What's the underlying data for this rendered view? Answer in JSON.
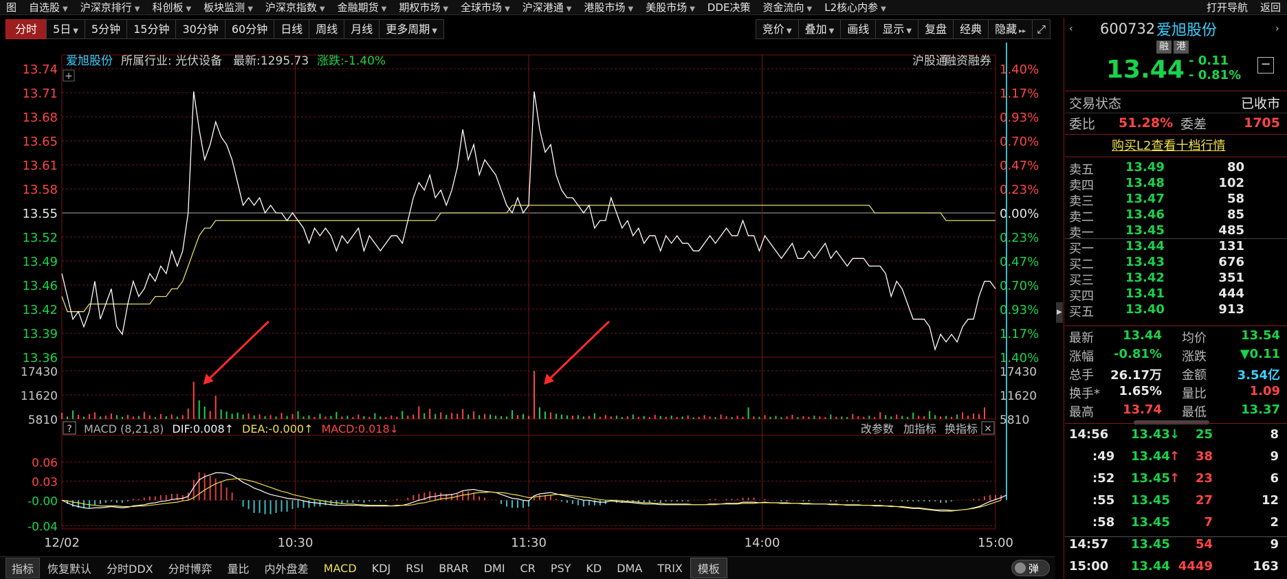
{
  "nav": {
    "items": [
      "图",
      "自选股",
      "沪深京排行",
      "科创板",
      "板块监测",
      "沪深京指数",
      "金融期货",
      "期权市场",
      "全球市场",
      "沪深港通",
      "港股市场",
      "美股市场",
      "DDE决策",
      "资金流向",
      "L2核心内参"
    ],
    "right": [
      "打开导航",
      "返回"
    ]
  },
  "toolbar": {
    "periods": [
      "分时",
      "5日",
      "5分钟",
      "15分钟",
      "30分钟",
      "60分钟",
      "日线",
      "周线",
      "月线",
      "更多周期"
    ],
    "right": [
      "竞价",
      "叠加",
      "画线",
      "显示",
      "复盘",
      "经典",
      "隐藏"
    ]
  },
  "info": {
    "name": "爱旭股份",
    "industry": "所属行业: 光伏设备",
    "latest": "最新:1295.73",
    "change": "涨跌:-1.40%",
    "tags": [
      "沪股通",
      "融资融券"
    ]
  },
  "macd_info": {
    "help": "?",
    "name": "MACD (8,21,8)",
    "dif": "DIF:0.008↑",
    "dea": "DEA:-0.000↑",
    "macd": "MACD:0.018↓",
    "actions": [
      "改参数",
      "加指标",
      "换指标"
    ]
  },
  "chart_data": {
    "type": "line",
    "x_labels": [
      "12/02",
      "10:30",
      "11:30",
      "14:00",
      "15:00"
    ],
    "price_ticks": [
      "13.74",
      "13.71",
      "13.68",
      "13.65",
      "13.61",
      "13.58",
      "13.55",
      "13.52",
      "13.49",
      "13.46",
      "13.42",
      "13.39",
      "13.36"
    ],
    "pct_ticks": [
      "1.40%",
      "1.17%",
      "0.93%",
      "0.70%",
      "0.47%",
      "0.23%",
      "0.00%",
      "0.23%",
      "0.47%",
      "0.70%",
      "0.93%",
      "1.17%",
      "1.40%"
    ],
    "price_range": [
      13.36,
      13.74
    ],
    "prev_close": 13.55,
    "series": [
      {
        "name": "price",
        "color": "#ffffff",
        "values": [
          13.47,
          13.44,
          13.41,
          13.42,
          13.4,
          13.42,
          13.46,
          13.41,
          13.43,
          13.45,
          13.4,
          13.39,
          13.43,
          13.46,
          13.44,
          13.45,
          13.47,
          13.46,
          13.48,
          13.47,
          13.5,
          13.48,
          13.5,
          13.55,
          13.71,
          13.66,
          13.62,
          13.64,
          13.67,
          13.65,
          13.64,
          13.62,
          13.59,
          13.56,
          13.57,
          13.56,
          13.57,
          13.55,
          13.56,
          13.55,
          13.55,
          13.54,
          13.55,
          13.54,
          13.53,
          13.51,
          13.53,
          13.52,
          13.53,
          13.52,
          13.5,
          13.52,
          13.51,
          13.52,
          13.53,
          13.5,
          13.52,
          13.51,
          13.5,
          13.51,
          13.52,
          13.52,
          13.51,
          13.54,
          13.57,
          13.59,
          13.58,
          13.6,
          13.57,
          13.58,
          13.56,
          13.58,
          13.61,
          13.66,
          13.62,
          13.64,
          13.6,
          13.62,
          13.61,
          13.6,
          13.58,
          13.56,
          13.55,
          13.57,
          13.55,
          13.56,
          13.71,
          13.66,
          13.63,
          13.64,
          13.6,
          13.58,
          13.57,
          13.57,
          13.56,
          13.55,
          13.56,
          13.53,
          13.54,
          13.54,
          13.57,
          13.55,
          13.53,
          13.54,
          13.52,
          13.53,
          13.51,
          13.52,
          13.52,
          13.5,
          13.52,
          13.51,
          13.52,
          13.51,
          13.51,
          13.5,
          13.5,
          13.51,
          13.52,
          13.51,
          13.52,
          13.53,
          13.52,
          13.52,
          13.54,
          13.52,
          13.52,
          13.5,
          13.52,
          13.51,
          13.5,
          13.49,
          13.5,
          13.51,
          13.49,
          13.49,
          13.5,
          13.49,
          13.5,
          13.51,
          13.49,
          13.5,
          13.49,
          13.48,
          13.49,
          13.49,
          13.49,
          13.48,
          13.48,
          13.48,
          13.47,
          13.44,
          13.46,
          13.45,
          13.43,
          13.41,
          13.41,
          13.41,
          13.4,
          13.37,
          13.39,
          13.38,
          13.39,
          13.38,
          13.4,
          13.41,
          13.41,
          13.44,
          13.46,
          13.46,
          13.45
        ]
      },
      {
        "name": "avg",
        "color": "#e8e070",
        "values": [
          13.44,
          13.42,
          13.42,
          13.42,
          13.42,
          13.43,
          13.43,
          13.43,
          13.43,
          13.43,
          13.43,
          13.43,
          13.43,
          13.43,
          13.43,
          13.43,
          13.43,
          13.44,
          13.44,
          13.44,
          13.45,
          13.45,
          13.46,
          13.48,
          13.5,
          13.52,
          13.53,
          13.53,
          13.54,
          13.54,
          13.54,
          13.54,
          13.54,
          13.54,
          13.54,
          13.54,
          13.54,
          13.54,
          13.54,
          13.54,
          13.54,
          13.54,
          13.54,
          13.54,
          13.54,
          13.54,
          13.54,
          13.54,
          13.54,
          13.54,
          13.54,
          13.54,
          13.54,
          13.54,
          13.54,
          13.54,
          13.54,
          13.54,
          13.54,
          13.54,
          13.54,
          13.54,
          13.54,
          13.54,
          13.54,
          13.54,
          13.54,
          13.54,
          13.54,
          13.55,
          13.55,
          13.55,
          13.55,
          13.55,
          13.55,
          13.55,
          13.55,
          13.55,
          13.55,
          13.55,
          13.55,
          13.55,
          13.56,
          13.56,
          13.56,
          13.56,
          13.56,
          13.56,
          13.56,
          13.56,
          13.56,
          13.56,
          13.56,
          13.56,
          13.56,
          13.56,
          13.56,
          13.56,
          13.56,
          13.56,
          13.56,
          13.56,
          13.56,
          13.56,
          13.56,
          13.56,
          13.56,
          13.56,
          13.56,
          13.56,
          13.56,
          13.56,
          13.56,
          13.56,
          13.56,
          13.56,
          13.56,
          13.56,
          13.56,
          13.56,
          13.56,
          13.56,
          13.56,
          13.56,
          13.56,
          13.56,
          13.56,
          13.56,
          13.56,
          13.56,
          13.56,
          13.56,
          13.56,
          13.56,
          13.56,
          13.56,
          13.56,
          13.56,
          13.56,
          13.56,
          13.56,
          13.56,
          13.56,
          13.56,
          13.56,
          13.56,
          13.56,
          13.56,
          13.55,
          13.55,
          13.55,
          13.55,
          13.55,
          13.55,
          13.55,
          13.55,
          13.55,
          13.55,
          13.55,
          13.55,
          13.55,
          13.54,
          13.54,
          13.54,
          13.54,
          13.54,
          13.54,
          13.54,
          13.54,
          13.54,
          13.54
        ]
      }
    ],
    "volume": {
      "ticks": [
        "17430",
        "11620",
        "5810"
      ],
      "max": 17430,
      "values": [
        2200,
        900,
        3100,
        1500,
        800,
        1800,
        2400,
        900,
        1200,
        2000,
        1400,
        800,
        1500,
        900,
        1100,
        2600,
        1300,
        700,
        1800,
        1000,
        1600,
        900,
        1400,
        3800,
        13500,
        6800,
        4500,
        2900,
        8400,
        3400,
        2700,
        1900,
        2300,
        1600,
        2000,
        1300,
        1700,
        1000,
        1400,
        900,
        2200,
        1100,
        1800,
        2800,
        900,
        1300,
        800,
        1900,
        900,
        1100,
        2500,
        900,
        1200,
        700,
        1600,
        1000,
        800,
        2100,
        900,
        700,
        1300,
        800,
        2900,
        1200,
        1600,
        4600,
        2100,
        3700,
        1800,
        2400,
        1500,
        2200,
        1900,
        3600,
        1600,
        2800,
        1400,
        1800,
        1600,
        1200,
        1000,
        900,
        3200,
        1400,
        1800,
        1100,
        17430,
        4200,
        2700,
        2400,
        1900,
        1600,
        1300,
        1200,
        1400,
        900,
        1100,
        2100,
        800,
        1400,
        900,
        1200,
        700,
        1000,
        1600,
        800,
        1100,
        700,
        1500,
        1100,
        800,
        1200,
        700,
        900,
        1300,
        600,
        800,
        1400,
        900,
        700,
        1600,
        1000,
        700,
        1200,
        800,
        4200,
        900,
        800,
        1400,
        800,
        1100,
        700,
        900,
        1500,
        700,
        1000,
        800,
        1200,
        900,
        700,
        1600,
        800,
        900,
        700,
        1800,
        1000,
        800,
        1200,
        700,
        2500,
        1400,
        900,
        1600,
        1100,
        800,
        2300,
        1200,
        1000,
        2900,
        1400,
        900,
        1100,
        800,
        1600,
        2400,
        1200,
        2000,
        1800,
        4200
      ]
    },
    "macd": {
      "ticks": [
        "0.06",
        "0.03",
        "-0.00",
        "-0.04"
      ],
      "range": [
        -0.045,
        0.065
      ],
      "dif": [
        0.0,
        -0.004,
        -0.008,
        -0.01,
        -0.012,
        -0.013,
        -0.012,
        -0.012,
        -0.011,
        -0.01,
        -0.011,
        -0.012,
        -0.011,
        -0.009,
        -0.008,
        -0.007,
        -0.005,
        -0.004,
        -0.002,
        -0.001,
        0.001,
        0.002,
        0.003,
        0.006,
        0.02,
        0.032,
        0.037,
        0.04,
        0.043,
        0.043,
        0.042,
        0.039,
        0.034,
        0.028,
        0.024,
        0.019,
        0.016,
        0.012,
        0.009,
        0.007,
        0.005,
        0.003,
        0.002,
        0.001,
        -0.001,
        -0.003,
        -0.004,
        -0.005,
        -0.006,
        -0.007,
        -0.008,
        -0.008,
        -0.008,
        -0.008,
        -0.008,
        -0.009,
        -0.009,
        -0.009,
        -0.009,
        -0.009,
        -0.009,
        -0.008,
        -0.008,
        -0.006,
        -0.003,
        0.0,
        0.002,
        0.005,
        0.006,
        0.008,
        0.008,
        0.009,
        0.011,
        0.015,
        0.016,
        0.017,
        0.015,
        0.014,
        0.013,
        0.012,
        0.009,
        0.006,
        0.003,
        0.002,
        -0.0,
        -0.001,
        0.007,
        0.01,
        0.011,
        0.012,
        0.01,
        0.008,
        0.006,
        0.004,
        0.002,
        0.0,
        -0.0,
        -0.002,
        -0.003,
        -0.003,
        -0.001,
        -0.002,
        -0.003,
        -0.003,
        -0.004,
        -0.005,
        -0.006,
        -0.006,
        -0.006,
        -0.007,
        -0.007,
        -0.007,
        -0.007,
        -0.007,
        -0.007,
        -0.007,
        -0.007,
        -0.007,
        -0.006,
        -0.006,
        -0.006,
        -0.005,
        -0.005,
        -0.005,
        -0.003,
        -0.003,
        -0.003,
        -0.004,
        -0.003,
        -0.004,
        -0.004,
        -0.005,
        -0.005,
        -0.005,
        -0.005,
        -0.006,
        -0.006,
        -0.006,
        -0.006,
        -0.006,
        -0.007,
        -0.007,
        -0.007,
        -0.008,
        -0.008,
        -0.008,
        -0.008,
        -0.008,
        -0.009,
        -0.009,
        -0.009,
        -0.01,
        -0.01,
        -0.011,
        -0.012,
        -0.013,
        -0.013,
        -0.014,
        -0.015,
        -0.016,
        -0.017,
        -0.017,
        -0.017,
        -0.016,
        -0.015,
        -0.014,
        -0.012,
        -0.01,
        -0.006,
        -0.002,
        0.001,
        0.004,
        0.008
      ],
      "dea": [
        0.0,
        -0.001,
        -0.003,
        -0.004,
        -0.006,
        -0.007,
        -0.008,
        -0.009,
        -0.009,
        -0.009,
        -0.009,
        -0.01,
        -0.01,
        -0.01,
        -0.009,
        -0.009,
        -0.008,
        -0.007,
        -0.006,
        -0.005,
        -0.004,
        -0.003,
        -0.001,
        0.0,
        0.004,
        0.01,
        0.016,
        0.021,
        0.026,
        0.029,
        0.032,
        0.033,
        0.034,
        0.033,
        0.031,
        0.029,
        0.026,
        0.023,
        0.02,
        0.017,
        0.014,
        0.012,
        0.009,
        0.007,
        0.005,
        0.003,
        0.001,
        -0.0,
        -0.002,
        -0.003,
        -0.004,
        -0.005,
        -0.006,
        -0.006,
        -0.007,
        -0.007,
        -0.008,
        -0.008,
        -0.008,
        -0.008,
        -0.009,
        -0.009,
        -0.008,
        -0.008,
        -0.007,
        -0.005,
        -0.004,
        -0.002,
        -0.0,
        0.002,
        0.003,
        0.004,
        0.006,
        0.008,
        0.009,
        0.011,
        0.012,
        0.012,
        0.013,
        0.012,
        0.012,
        0.011,
        0.009,
        0.008,
        0.006,
        0.004,
        0.005,
        0.006,
        0.007,
        0.008,
        0.009,
        0.009,
        0.008,
        0.007,
        0.006,
        0.005,
        0.004,
        0.002,
        0.001,
        0.0,
        0.0,
        -0.0,
        -0.001,
        -0.002,
        -0.002,
        -0.003,
        -0.004,
        -0.004,
        -0.005,
        -0.005,
        -0.006,
        -0.006,
        -0.006,
        -0.006,
        -0.006,
        -0.007,
        -0.007,
        -0.007,
        -0.007,
        -0.007,
        -0.006,
        -0.006,
        -0.006,
        -0.006,
        -0.005,
        -0.005,
        -0.005,
        -0.004,
        -0.004,
        -0.004,
        -0.004,
        -0.004,
        -0.004,
        -0.005,
        -0.005,
        -0.005,
        -0.005,
        -0.006,
        -0.006,
        -0.006,
        -0.006,
        -0.006,
        -0.007,
        -0.007,
        -0.007,
        -0.007,
        -0.008,
        -0.008,
        -0.008,
        -0.008,
        -0.009,
        -0.009,
        -0.01,
        -0.01,
        -0.011,
        -0.012,
        -0.012,
        -0.013,
        -0.014,
        -0.015,
        -0.015,
        -0.015,
        -0.016,
        -0.016,
        -0.015,
        -0.014,
        -0.013,
        -0.011,
        -0.009,
        -0.006,
        -0.003,
        -0.0
      ]
    }
  },
  "annotations": [
    {
      "target_index": 24
    },
    {
      "target_index": 86
    }
  ],
  "quote": {
    "code": "600732",
    "name": "爱旭股份",
    "badges": [
      "融",
      "港"
    ],
    "price": "13.44",
    "change": "- 0.11",
    "change_pct": "- 0.81%",
    "minus_btn": "−",
    "status_label": "交易状态",
    "status_value": "已收市",
    "wei_bi_label": "委比",
    "wei_bi_value": "51.28%",
    "wei_cha_label": "委差",
    "wei_cha_value": "1705",
    "l2_link": "购买L2查看十档行情"
  },
  "orderbook": {
    "asks": [
      {
        "label": "卖五",
        "price": "13.49",
        "vol": "80"
      },
      {
        "label": "卖四",
        "price": "13.48",
        "vol": "102"
      },
      {
        "label": "卖三",
        "price": "13.47",
        "vol": "58"
      },
      {
        "label": "卖二",
        "price": "13.46",
        "vol": "85"
      },
      {
        "label": "卖一",
        "price": "13.45",
        "vol": "485"
      }
    ],
    "bids": [
      {
        "label": "买一",
        "price": "13.44",
        "vol": "131"
      },
      {
        "label": "买二",
        "price": "13.43",
        "vol": "676"
      },
      {
        "label": "买三",
        "price": "13.42",
        "vol": "351"
      },
      {
        "label": "买四",
        "price": "13.41",
        "vol": "444"
      },
      {
        "label": "买五",
        "price": "13.40",
        "vol": "913"
      }
    ]
  },
  "stats": [
    {
      "l1": "最新",
      "v1": "13.44",
      "c1": "green",
      "l2": "均价",
      "v2": "13.54",
      "c2": "green"
    },
    {
      "l1": "涨幅",
      "v1": "-0.81%",
      "c1": "green",
      "l2": "涨跌",
      "v2": "▼0.11",
      "c2": "green"
    },
    {
      "l1": "总手",
      "v1": "26.17万",
      "c1": "white",
      "l2": "金额",
      "v2": "3.54亿",
      "c2": "cyan"
    },
    {
      "l1": "换手*",
      "v1": "1.65%",
      "c1": "white",
      "l2": "量比",
      "v2": "1.09",
      "c2": "red"
    },
    {
      "l1": "最高",
      "v1": "13.74",
      "c1": "red",
      "l2": "最低",
      "v2": "13.37",
      "c2": "green"
    }
  ],
  "ticks": [
    {
      "time": "14:56",
      "price": "13.43",
      "arrow": "↓",
      "arrow_color": "green",
      "vol": "25",
      "vol_color": "green",
      "n": "8"
    },
    {
      "time": ":49",
      "price": "13.44",
      "arrow": "↑",
      "arrow_color": "red",
      "vol": "38",
      "vol_color": "red",
      "n": "9"
    },
    {
      "time": ":52",
      "price": "13.45",
      "arrow": "↑",
      "arrow_color": "red",
      "vol": "23",
      "vol_color": "red",
      "n": "6"
    },
    {
      "time": ":55",
      "price": "13.45",
      "arrow": "",
      "arrow_color": "",
      "vol": "27",
      "vol_color": "red",
      "n": "12"
    },
    {
      "time": ":58",
      "price": "13.45",
      "arrow": "",
      "arrow_color": "",
      "vol": "7",
      "vol_color": "red",
      "n": "2"
    },
    {
      "time": "14:57",
      "price": "13.45",
      "arrow": "",
      "arrow_color": "",
      "vol": "54",
      "vol_color": "red",
      "n": "9"
    },
    {
      "time": "15:00",
      "price": "13.44",
      "arrow": "",
      "arrow_color": "",
      "vol": "4449",
      "vol_color": "red",
      "n": "163"
    }
  ],
  "bottom": {
    "tabs": [
      "指标",
      "恢复默认",
      "分时DDX",
      "分时博弈",
      "量比",
      "内外盘差",
      "MACD",
      "KDJ",
      "RSI",
      "BRAR",
      "DMI",
      "CR",
      "PSY",
      "KD",
      "DMA",
      "TRIX",
      "模板"
    ],
    "active": "MACD",
    "toggle": "弹"
  },
  "colors": {
    "up": "#ff4545",
    "down": "#19d34a",
    "grid": "#7a1212",
    "accent": "#9c1e1e"
  }
}
